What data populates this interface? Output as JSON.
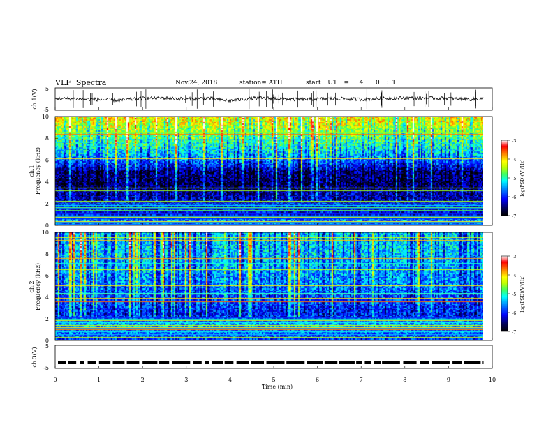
{
  "header": {
    "title": "VLF  Spectra",
    "date": "Nov.24, 2018",
    "station": "station= ATH",
    "start_ut": "start  UT  =   4  : 0  : 1"
  },
  "colors": {
    "colormap": [
      "#000000",
      "#00005a",
      "#0000ff",
      "#0090ff",
      "#00ffff",
      "#40ff60",
      "#c0ff00",
      "#ffff00",
      "#ff8000",
      "#ff0000",
      "#ffffff"
    ],
    "trace": "#000000"
  },
  "chart_data": [
    {
      "type": "line",
      "panel": "ch1-waveform",
      "ylabel": "ch.1(V)",
      "ylim": [
        -5,
        5
      ],
      "yticks": [
        "5",
        "-5"
      ],
      "xlim": [
        0,
        10
      ],
      "description_values": "noisy signal near 0 V",
      "x": [
        0,
        0.5,
        1,
        1.5,
        2,
        2.5,
        3,
        3.5,
        4,
        4.5,
        5,
        5.5,
        6,
        6.5,
        7,
        7.5,
        8,
        8.5,
        9,
        9.5,
        9.8
      ],
      "y": [
        0.2,
        0.1,
        -0.2,
        -0.5,
        0.3,
        0.5,
        0.0,
        0.4,
        -0.8,
        0.4,
        0.3,
        -0.2,
        0.0,
        0.2,
        -0.1,
        0.3,
        0.5,
        0.4,
        0.3,
        -0.1,
        0.2
      ]
    },
    {
      "type": "heatmap",
      "panel": "ch1-spectrogram",
      "ylabel": "Frequency  (kHz)",
      "channel_label": "ch.1",
      "ylim": [
        0,
        10
      ],
      "yticks": [
        "0",
        "2",
        "4",
        "6",
        "8",
        "10"
      ],
      "xlim": [
        0,
        10
      ],
      "data_end_min": 9.8,
      "colorbar": {
        "label": "log(PSD)(V²/Hz)",
        "range": [
          -7,
          -3
        ],
        "ticks": [
          "-3",
          "-4",
          "-5",
          "-6",
          "-7"
        ]
      },
      "profile_khz": [
        0,
        0.5,
        1,
        1.5,
        2,
        2.5,
        3,
        3.5,
        4,
        4.5,
        5,
        5.5,
        6,
        6.5,
        7,
        7.5,
        8,
        8.5,
        9,
        9.5,
        10
      ],
      "profile_log_psd": [
        -6.0,
        -5.6,
        -6.1,
        -6.1,
        -6.0,
        -6.3,
        -6.3,
        -6.5,
        -6.6,
        -6.5,
        -6.5,
        -6.0,
        -5.7,
        -5.4,
        -5.2,
        -5.0,
        -4.8,
        -4.6,
        -4.4,
        -4.2,
        -4.1
      ]
    },
    {
      "type": "heatmap",
      "panel": "ch2-spectrogram",
      "ylabel": "Frequency  (kHz)",
      "channel_label": "ch.2",
      "ylim": [
        0,
        10
      ],
      "yticks": [
        "0",
        "2",
        "4",
        "6",
        "8",
        "10"
      ],
      "xlim": [
        0,
        10
      ],
      "data_end_min": 9.8,
      "colorbar": {
        "label": "log(PSD)(V²/Hz)",
        "range": [
          -7,
          -3
        ],
        "ticks": [
          "-3",
          "-4",
          "-5",
          "-6",
          "-7"
        ]
      },
      "profile_khz": [
        0,
        0.5,
        1,
        1.5,
        2,
        2.5,
        3,
        3.5,
        4,
        4.5,
        5,
        5.5,
        6,
        6.5,
        7,
        7.5,
        8,
        8.5,
        9,
        9.5,
        10
      ],
      "profile_log_psd": [
        -6.0,
        -5.8,
        -5.6,
        -5.4,
        -5.8,
        -6.0,
        -5.9,
        -5.8,
        -5.8,
        -5.7,
        -5.6,
        -5.5,
        -5.5,
        -5.4,
        -5.4,
        -5.4,
        -5.3,
        -5.3,
        -5.3,
        -5.3,
        -5.3
      ]
    },
    {
      "type": "line",
      "panel": "ch3-trace",
      "ylabel": "ch.3(V)",
      "ylim": [
        -5,
        5
      ],
      "yticks": [
        "5",
        "-5"
      ],
      "xlim": [
        0,
        10
      ],
      "x": [
        0,
        9.8
      ],
      "y": [
        -2.5,
        -2.5
      ]
    }
  ],
  "xaxis": {
    "label": "Time  (min)",
    "ticks": [
      "0",
      "1",
      "2",
      "3",
      "4",
      "5",
      "6",
      "7",
      "8",
      "9",
      "10"
    ]
  }
}
